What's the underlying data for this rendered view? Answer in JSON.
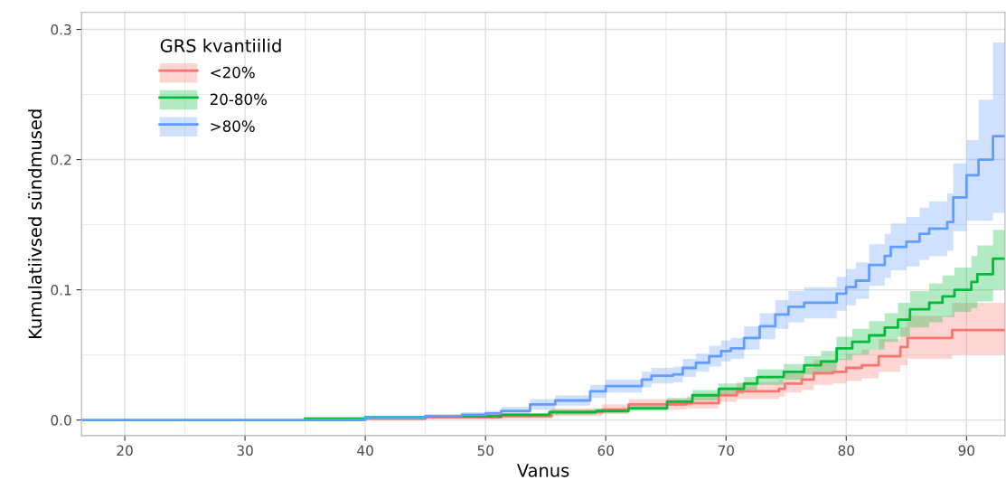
{
  "chart_data": {
    "type": "step",
    "xlabel": "Vanus",
    "ylabel": "Kumulatiivsed sündmused",
    "legend_title": "GRS kvantiilid",
    "legend": "top left",
    "grid": true,
    "xlim": [
      16.4,
      93.2
    ],
    "xticks": [
      20,
      30,
      40,
      50,
      60,
      70,
      80,
      90
    ],
    "ylim": [
      -0.012,
      0.313
    ],
    "yticks": [
      {
        "value": 0,
        "label": "0.0"
      },
      0.1,
      0.2,
      0.3
    ],
    "series": [
      {
        "name": "<20%",
        "color": "#f8766d",
        "x": [
          40,
          45,
          51.3,
          55.5,
          59.7,
          61.9,
          66.7,
          69.4,
          70.9,
          74.4,
          74.9,
          76.3,
          77.3,
          78.9,
          80,
          81.3,
          82.7,
          84.5,
          85.1,
          88.8,
          93.2
        ],
        "values": [
          0.001,
          0.002,
          0.003,
          0.006,
          0.008,
          0.012,
          0.013,
          0.019,
          0.022,
          0.024,
          0.028,
          0.031,
          0.036,
          0.037,
          0.04,
          0.042,
          0.049,
          0.056,
          0.063,
          0.069,
          0.069
        ],
        "lower": [
          0,
          0.001,
          0.001,
          0.003,
          0.005,
          0.008,
          0.009,
          0.014,
          0.016,
          0.018,
          0.021,
          0.023,
          0.027,
          0.028,
          0.03,
          0.032,
          0.037,
          0.042,
          0.047,
          0.05,
          0.05
        ],
        "upper": [
          0.002,
          0.004,
          0.005,
          0.009,
          0.012,
          0.016,
          0.018,
          0.025,
          0.029,
          0.031,
          0.036,
          0.04,
          0.046,
          0.047,
          0.051,
          0.054,
          0.062,
          0.071,
          0.08,
          0.09,
          0.09
        ]
      },
      {
        "name": "20-80%",
        "color": "#00ba38",
        "x": [
          35,
          40,
          45,
          51.3,
          55.3,
          59.2,
          61.9,
          65.1,
          67.2,
          69.4,
          71.5,
          72.6,
          74.8,
          76.5,
          77.9,
          79.2,
          80.5,
          81.9,
          83.2,
          84.3,
          85.3,
          86.9,
          88,
          89,
          90.4,
          90.9,
          92.2,
          93.2
        ],
        "values": [
          0.001,
          0.002,
          0.003,
          0.004,
          0.006,
          0.007,
          0.009,
          0.014,
          0.019,
          0.024,
          0.028,
          0.033,
          0.037,
          0.042,
          0.045,
          0.055,
          0.06,
          0.065,
          0.071,
          0.077,
          0.085,
          0.09,
          0.095,
          0.1,
          0.106,
          0.112,
          0.124,
          0.124
        ],
        "lower": [
          0.0005,
          0.001,
          0.002,
          0.003,
          0.004,
          0.005,
          0.007,
          0.011,
          0.015,
          0.02,
          0.023,
          0.027,
          0.031,
          0.035,
          0.037,
          0.046,
          0.05,
          0.054,
          0.06,
          0.064,
          0.071,
          0.075,
          0.079,
          0.083,
          0.086,
          0.091,
          0.1,
          0.1
        ],
        "upper": [
          0.002,
          0.003,
          0.004,
          0.005,
          0.008,
          0.009,
          0.011,
          0.017,
          0.023,
          0.028,
          0.033,
          0.039,
          0.043,
          0.049,
          0.053,
          0.064,
          0.07,
          0.076,
          0.082,
          0.09,
          0.099,
          0.105,
          0.111,
          0.117,
          0.126,
          0.134,
          0.146,
          0.146
        ]
      },
      {
        "name": ">80%",
        "color": "#619cff",
        "x": [
          16.4,
          35,
          40,
          45,
          48,
          50,
          51.3,
          53.7,
          55.8,
          58.7,
          60,
          63,
          63.8,
          65.6,
          66.4,
          67.5,
          68.6,
          69.6,
          70.4,
          71.5,
          72.8,
          74.1,
          75.2,
          76.5,
          79.2,
          80,
          80.8,
          81.9,
          83.2,
          83.7,
          85,
          86.1,
          86.9,
          88.4,
          88.9,
          90,
          91,
          92.2,
          93.2
        ],
        "values": [
          0,
          0,
          0.002,
          0.003,
          0.004,
          0.005,
          0.007,
          0.012,
          0.015,
          0.022,
          0.026,
          0.031,
          0.034,
          0.035,
          0.04,
          0.044,
          0.049,
          0.053,
          0.055,
          0.063,
          0.072,
          0.081,
          0.087,
          0.09,
          0.097,
          0.102,
          0.107,
          0.119,
          0.126,
          0.133,
          0.137,
          0.143,
          0.147,
          0.152,
          0.171,
          0.188,
          0.2,
          0.218,
          0.218
        ],
        "lower": [
          0,
          0.0005,
          0.001,
          0.002,
          0.002,
          0.003,
          0.004,
          0.008,
          0.011,
          0.017,
          0.021,
          0.025,
          0.028,
          0.029,
          0.033,
          0.037,
          0.041,
          0.045,
          0.047,
          0.054,
          0.062,
          0.07,
          0.075,
          0.078,
          0.084,
          0.088,
          0.093,
          0.103,
          0.109,
          0.115,
          0.118,
          0.123,
          0.126,
          0.13,
          0.145,
          0.153,
          0.153,
          0.159,
          0.159
        ],
        "upper": [
          0,
          0.002,
          0.003,
          0.004,
          0.006,
          0.007,
          0.01,
          0.016,
          0.019,
          0.027,
          0.031,
          0.037,
          0.04,
          0.041,
          0.047,
          0.051,
          0.057,
          0.061,
          0.063,
          0.072,
          0.082,
          0.092,
          0.099,
          0.102,
          0.11,
          0.116,
          0.121,
          0.135,
          0.143,
          0.151,
          0.156,
          0.163,
          0.168,
          0.174,
          0.197,
          0.215,
          0.246,
          0.29,
          0.29
        ]
      }
    ]
  }
}
